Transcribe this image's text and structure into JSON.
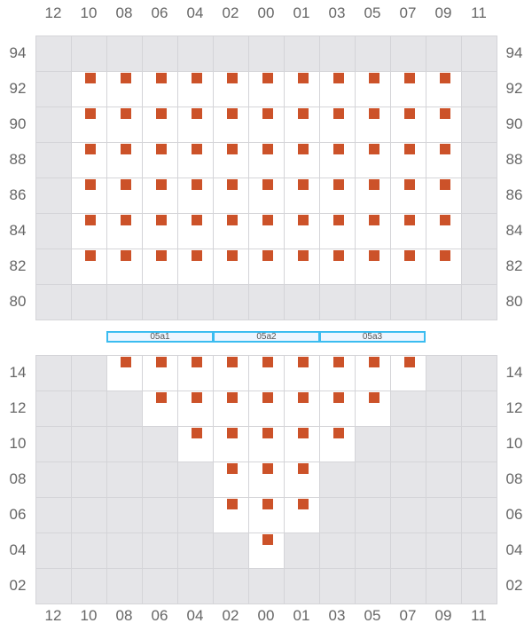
{
  "columns": [
    "12",
    "10",
    "08",
    "06",
    "04",
    "02",
    "00",
    "01",
    "03",
    "05",
    "07",
    "09",
    "11"
  ],
  "colors": {
    "seat": "#cc5229",
    "unavailable": "#e5e5e8",
    "section_border": "#3bbcf0"
  },
  "upper_block": {
    "rows": [
      {
        "label": "94",
        "seats": []
      },
      {
        "label": "92",
        "seats": [
          "10",
          "08",
          "06",
          "04",
          "02",
          "00",
          "01",
          "03",
          "05",
          "07",
          "09"
        ]
      },
      {
        "label": "90",
        "seats": [
          "10",
          "08",
          "06",
          "04",
          "02",
          "00",
          "01",
          "03",
          "05",
          "07",
          "09"
        ]
      },
      {
        "label": "88",
        "seats": [
          "10",
          "08",
          "06",
          "04",
          "02",
          "00",
          "01",
          "03",
          "05",
          "07",
          "09"
        ]
      },
      {
        "label": "86",
        "seats": [
          "10",
          "08",
          "06",
          "04",
          "02",
          "00",
          "01",
          "03",
          "05",
          "07",
          "09"
        ]
      },
      {
        "label": "84",
        "seats": [
          "10",
          "08",
          "06",
          "04",
          "02",
          "00",
          "01",
          "03",
          "05",
          "07",
          "09"
        ]
      },
      {
        "label": "82",
        "seats": [
          "10",
          "08",
          "06",
          "04",
          "02",
          "00",
          "01",
          "03",
          "05",
          "07",
          "09"
        ]
      },
      {
        "label": "80",
        "seats": []
      }
    ]
  },
  "sections": [
    "05a1",
    "05a2",
    "05a3"
  ],
  "lower_block": {
    "rows": [
      {
        "label": "14",
        "seats": [
          "08",
          "06",
          "04",
          "02",
          "00",
          "01",
          "03",
          "05",
          "07"
        ]
      },
      {
        "label": "12",
        "seats": [
          "06",
          "04",
          "02",
          "00",
          "01",
          "03",
          "05"
        ]
      },
      {
        "label": "10",
        "seats": [
          "04",
          "02",
          "00",
          "01",
          "03"
        ]
      },
      {
        "label": "08",
        "seats": [
          "02",
          "00",
          "01"
        ]
      },
      {
        "label": "06",
        "seats": [
          "02",
          "00",
          "01"
        ]
      },
      {
        "label": "04",
        "seats": [
          "00"
        ]
      },
      {
        "label": "02",
        "seats": []
      }
    ]
  }
}
